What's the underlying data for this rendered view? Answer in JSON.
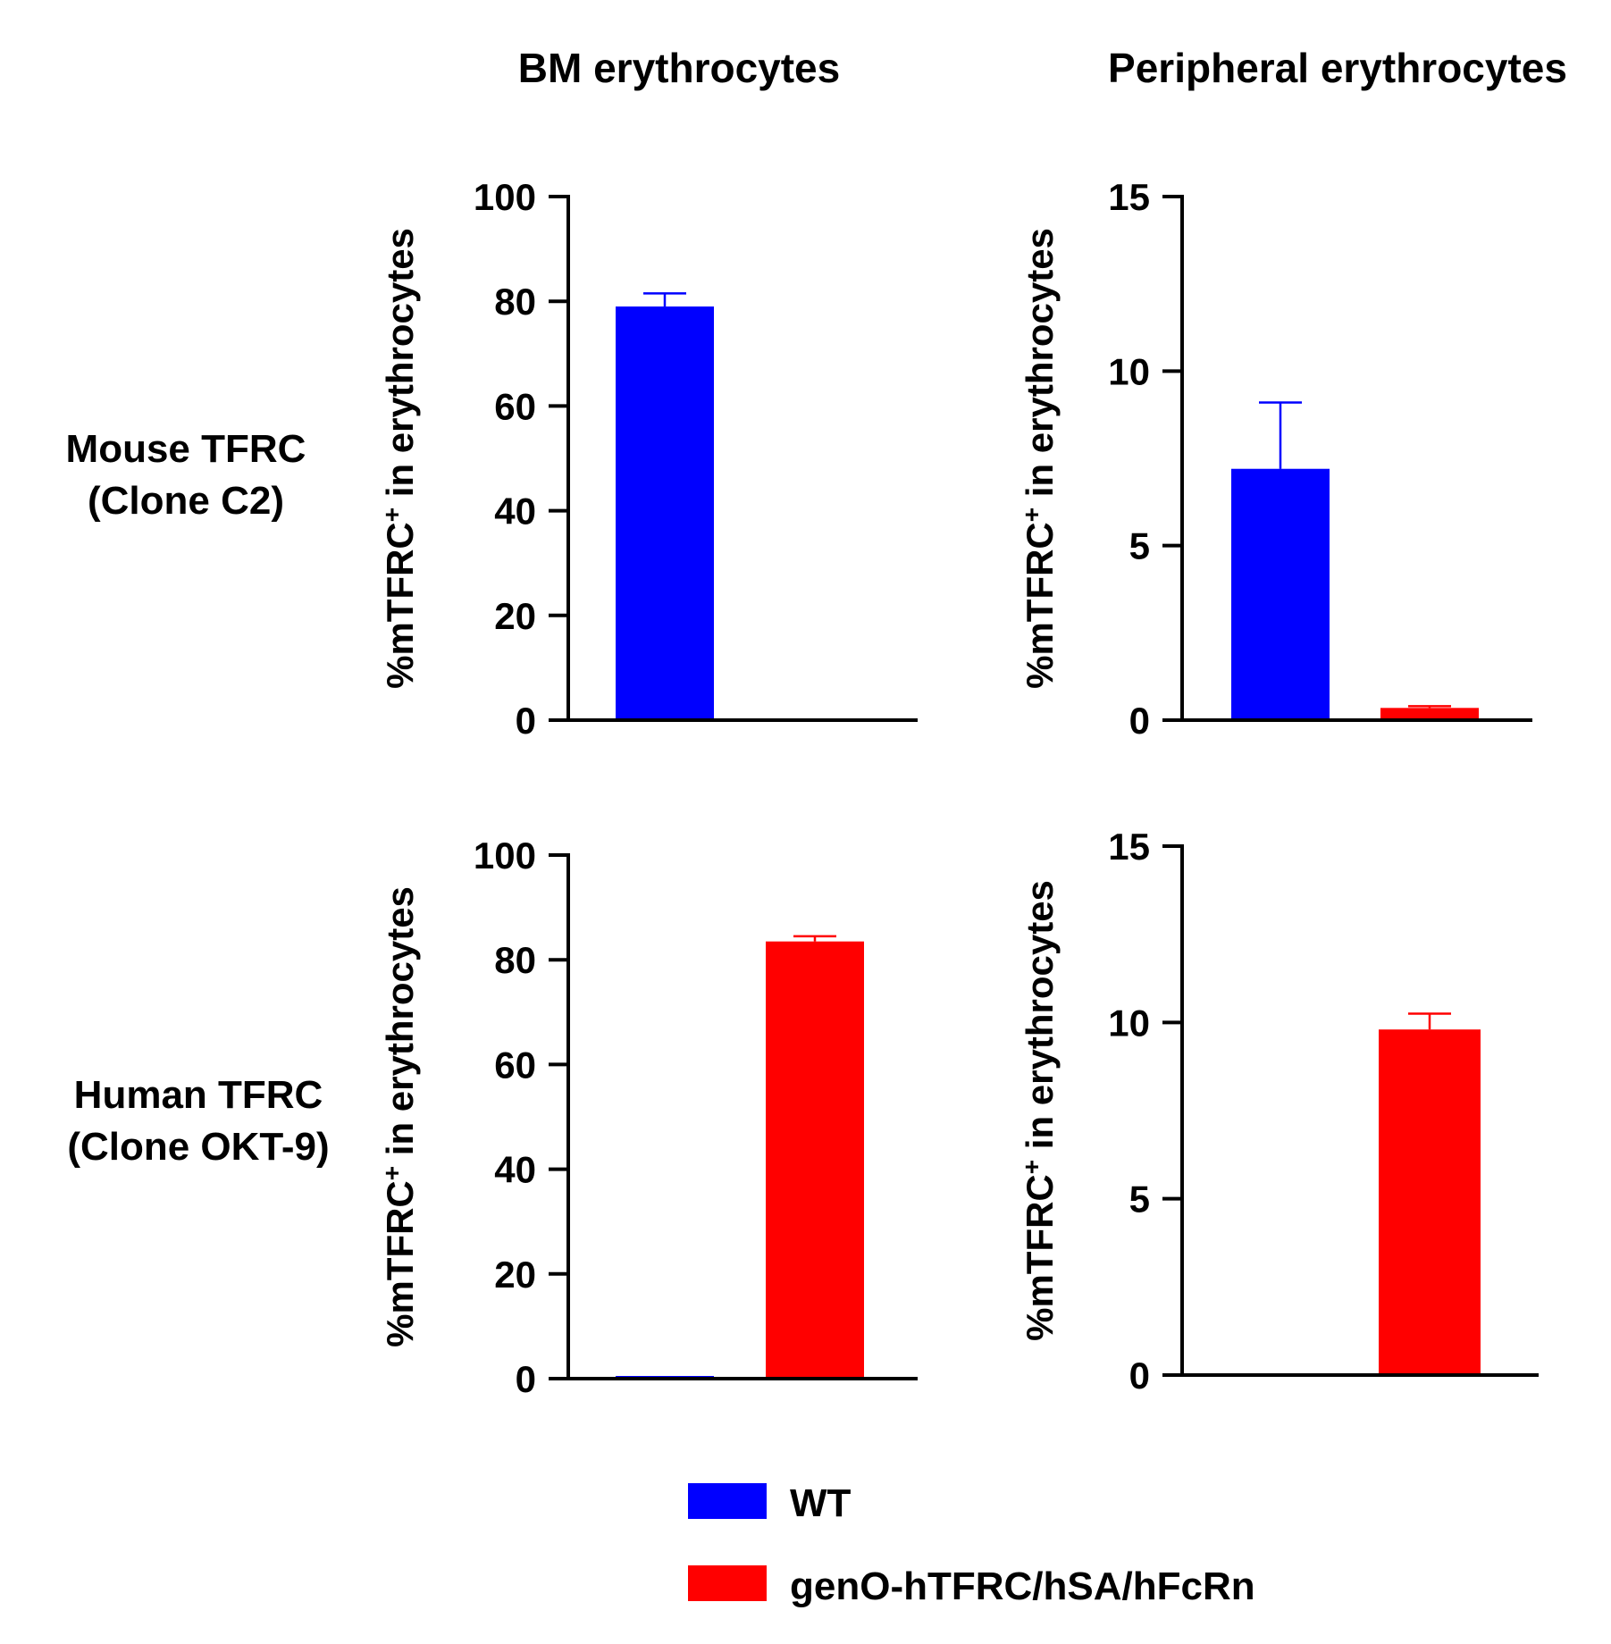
{
  "column_titles": [
    "BM erythrocytes",
    "Peripheral erythrocytes"
  ],
  "row_labels": [
    [
      "Mouse TFRC",
      "(Clone C2)"
    ],
    [
      "Human TFRC",
      "(Clone OKT-9)"
    ]
  ],
  "colors": {
    "WT": "#0000ff",
    "genO": "#ff0000",
    "axis": "#000000"
  },
  "legend": [
    {
      "label": "WT",
      "color": "#0000ff"
    },
    {
      "label": "genO-hTFRC/hSA/hFcRn",
      "color": "#ff0000"
    }
  ],
  "chart_data": [
    {
      "type": "bar",
      "row": "Mouse TFRC (Clone C2)",
      "column": "BM erythrocytes",
      "ylabel_main": "%mTFRC",
      "ylabel_sup": "+",
      "ylabel_rest": " in erythrocytes",
      "ylim": [
        0,
        100
      ],
      "yticks": [
        0,
        20,
        40,
        60,
        80,
        100
      ],
      "series": [
        {
          "name": "WT",
          "value": 79,
          "error": 2.5
        },
        {
          "name": "genO-hTFRC/hSA/hFcRn",
          "value": 0,
          "error": 0
        }
      ]
    },
    {
      "type": "bar",
      "row": "Mouse TFRC (Clone C2)",
      "column": "Peripheral erythrocytes",
      "ylabel_main": "%mTFRC",
      "ylabel_sup": "+",
      "ylabel_rest": " in erythrocytes",
      "ylim": [
        0,
        15
      ],
      "yticks": [
        0,
        5,
        10,
        15
      ],
      "series": [
        {
          "name": "WT",
          "value": 7.2,
          "error": 1.9
        },
        {
          "name": "genO-hTFRC/hSA/hFcRn",
          "value": 0.35,
          "error": 0.05
        }
      ]
    },
    {
      "type": "bar",
      "row": "Human TFRC (Clone OKT-9)",
      "column": "BM erythrocytes",
      "ylabel_main": "%mTFRC",
      "ylabel_sup": "+",
      "ylabel_rest": " in erythrocytes",
      "ylim": [
        0,
        100
      ],
      "yticks": [
        0,
        20,
        40,
        60,
        80,
        100
      ],
      "series": [
        {
          "name": "WT",
          "value": 0.2,
          "error": 0
        },
        {
          "name": "genO-hTFRC/hSA/hFcRn",
          "value": 83.5,
          "error": 1.0
        }
      ]
    },
    {
      "type": "bar",
      "row": "Human TFRC (Clone OKT-9)",
      "column": "Peripheral erythrocytes",
      "ylabel_main": "%mTFRC",
      "ylabel_sup": "+",
      "ylabel_rest": " in erythrocytes",
      "ylim": [
        0,
        15
      ],
      "yticks": [
        0,
        5,
        10,
        15
      ],
      "series": [
        {
          "name": "WT",
          "value": 0,
          "error": 0
        },
        {
          "name": "genO-hTFRC/hSA/hFcRn",
          "value": 9.8,
          "error": 0.45
        }
      ]
    }
  ]
}
